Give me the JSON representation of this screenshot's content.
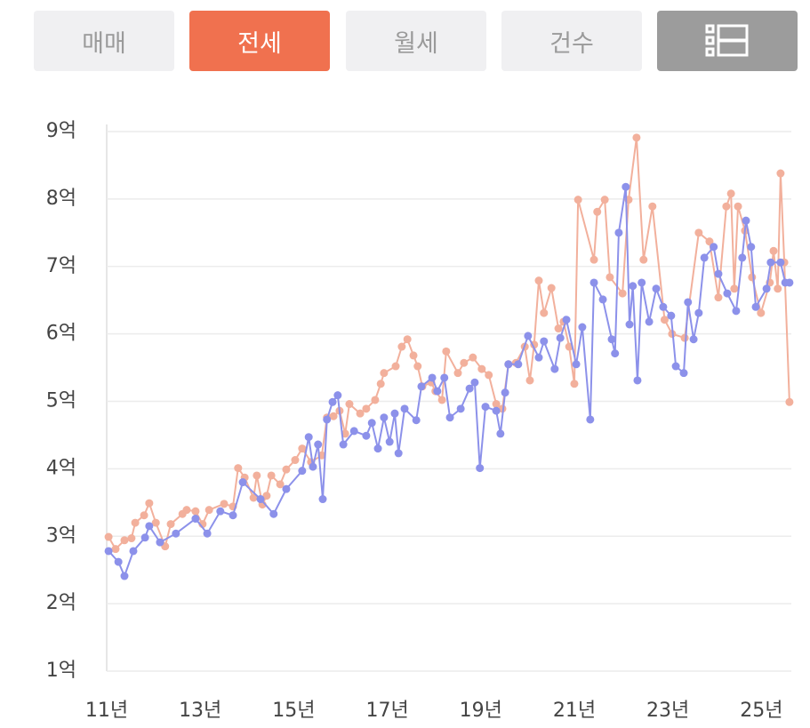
{
  "tabs": [
    "매매",
    "전세",
    "월세",
    "건수"
  ],
  "chart_data": {
    "type": "line",
    "xlim": [
      11,
      25.64
    ],
    "ylim": [
      1,
      9
    ],
    "xticks": [
      {
        "value": 11,
        "label": "11년"
      },
      {
        "value": 13,
        "label": "13년"
      },
      {
        "value": 15,
        "label": "15년"
      },
      {
        "value": 17,
        "label": "17년"
      },
      {
        "value": 19,
        "label": "19년"
      },
      {
        "value": 21,
        "label": "21년"
      },
      {
        "value": 23,
        "label": "23년"
      },
      {
        "value": 25,
        "label": "25년"
      }
    ],
    "yticks": [
      {
        "value": 1,
        "label": "1억"
      },
      {
        "value": 2,
        "label": "2억"
      },
      {
        "value": 3,
        "label": "3억"
      },
      {
        "value": 4,
        "label": "4억"
      },
      {
        "value": 5,
        "label": "5억"
      },
      {
        "value": 6,
        "label": "6억"
      },
      {
        "value": 7,
        "label": "7억"
      },
      {
        "value": 8,
        "label": "8억"
      },
      {
        "value": 9,
        "label": "9억"
      }
    ],
    "grid": true,
    "series": [
      {
        "color": "#f2b09c",
        "x": [
          11.04,
          11.19,
          11.38,
          11.53,
          11.61,
          11.8,
          11.91,
          12.05,
          12.25,
          12.37,
          12.62,
          12.71,
          12.9,
          13.05,
          13.19,
          13.51,
          13.7,
          13.81,
          13.95,
          14.14,
          14.21,
          14.33,
          14.42,
          14.52,
          14.71,
          14.84,
          15.03,
          15.18,
          15.37,
          15.6,
          15.71,
          15.85,
          15.98,
          16.1,
          16.19,
          16.42,
          16.55,
          16.74,
          16.86,
          16.93,
          17.18,
          17.31,
          17.43,
          17.56,
          17.65,
          17.75,
          17.94,
          18.03,
          18.17,
          18.26,
          18.51,
          18.64,
          18.83,
          19.02,
          19.17,
          19.33,
          19.46,
          19.59,
          19.75,
          19.94,
          20.05,
          20.14,
          20.24,
          20.35,
          20.51,
          20.66,
          20.77,
          20.89,
          21.0,
          21.08,
          21.42,
          21.49,
          21.65,
          21.76,
          22.03,
          22.16,
          22.33,
          22.48,
          22.67,
          22.93,
          23.09,
          23.36,
          23.66,
          23.89,
          24.08,
          24.25,
          24.35,
          24.42,
          24.5,
          24.65,
          24.8,
          24.99,
          25.18,
          25.26,
          25.35,
          25.41,
          25.49,
          25.6
        ],
        "values": [
          2.99,
          2.81,
          2.94,
          2.97,
          3.2,
          3.31,
          3.49,
          3.2,
          2.85,
          3.18,
          3.33,
          3.39,
          3.37,
          3.18,
          3.39,
          3.48,
          3.44,
          4.01,
          3.87,
          3.57,
          3.9,
          3.47,
          3.6,
          3.9,
          3.77,
          3.99,
          4.13,
          4.3,
          4.1,
          4.2,
          4.76,
          4.78,
          4.86,
          4.52,
          4.96,
          4.82,
          4.89,
          5.02,
          5.26,
          5.42,
          5.52,
          5.81,
          5.92,
          5.68,
          5.52,
          5.22,
          5.28,
          5.15,
          5.02,
          5.74,
          5.42,
          5.57,
          5.65,
          5.48,
          5.39,
          4.96,
          4.89,
          5.55,
          5.57,
          5.81,
          5.31,
          5.84,
          6.79,
          6.31,
          6.68,
          6.08,
          6.18,
          5.81,
          5.26,
          7.99,
          7.1,
          7.81,
          7.99,
          6.84,
          6.6,
          7.99,
          8.91,
          7.1,
          7.89,
          6.21,
          6.0,
          5.94,
          7.5,
          7.37,
          6.54,
          7.89,
          8.08,
          6.67,
          7.89,
          7.53,
          6.84,
          6.31,
          6.76,
          7.23,
          6.67,
          8.38,
          7.06,
          4.99
        ]
      },
      {
        "color": "#8c91ea",
        "x": [
          11.04,
          11.25,
          11.38,
          11.57,
          11.82,
          11.91,
          12.14,
          12.48,
          12.9,
          13.15,
          13.43,
          13.7,
          13.91,
          14.29,
          14.57,
          14.84,
          15.18,
          15.32,
          15.41,
          15.52,
          15.62,
          15.71,
          15.83,
          15.94,
          16.06,
          16.29,
          16.55,
          16.67,
          16.8,
          16.93,
          17.05,
          17.16,
          17.24,
          17.37,
          17.62,
          17.73,
          17.96,
          18.07,
          18.22,
          18.34,
          18.57,
          18.76,
          18.87,
          18.98,
          19.1,
          19.33,
          19.42,
          19.52,
          19.59,
          19.8,
          20.01,
          20.24,
          20.35,
          20.58,
          20.7,
          20.83,
          21.04,
          21.17,
          21.34,
          21.42,
          21.61,
          21.8,
          21.87,
          21.95,
          22.1,
          22.18,
          22.25,
          22.35,
          22.44,
          22.6,
          22.75,
          22.9,
          23.07,
          23.17,
          23.34,
          23.43,
          23.55,
          23.66,
          23.78,
          23.98,
          24.08,
          24.27,
          24.46,
          24.59,
          24.67,
          24.78,
          24.88,
          25.11,
          25.2,
          25.41,
          25.51,
          25.6
        ],
        "values": [
          2.78,
          2.62,
          2.41,
          2.78,
          2.98,
          3.15,
          2.91,
          3.04,
          3.26,
          3.04,
          3.37,
          3.31,
          3.8,
          3.55,
          3.33,
          3.7,
          3.97,
          4.47,
          4.03,
          4.36,
          3.55,
          4.73,
          4.99,
          5.09,
          4.36,
          4.56,
          4.49,
          4.68,
          4.3,
          4.76,
          4.4,
          4.82,
          4.23,
          4.89,
          4.72,
          5.22,
          5.35,
          5.15,
          5.35,
          4.76,
          4.89,
          5.19,
          5.28,
          4.01,
          4.92,
          4.86,
          4.52,
          5.13,
          5.55,
          5.55,
          5.97,
          5.65,
          5.89,
          5.48,
          5.94,
          6.21,
          5.55,
          6.1,
          4.73,
          6.76,
          6.51,
          5.92,
          5.71,
          7.5,
          8.18,
          6.14,
          6.71,
          5.31,
          6.76,
          6.18,
          6.67,
          6.4,
          6.27,
          5.52,
          5.42,
          6.47,
          5.92,
          6.31,
          7.13,
          7.29,
          6.89,
          6.6,
          6.34,
          7.13,
          7.68,
          7.29,
          6.4,
          6.67,
          7.06,
          7.06,
          6.76,
          6.76
        ]
      }
    ]
  }
}
